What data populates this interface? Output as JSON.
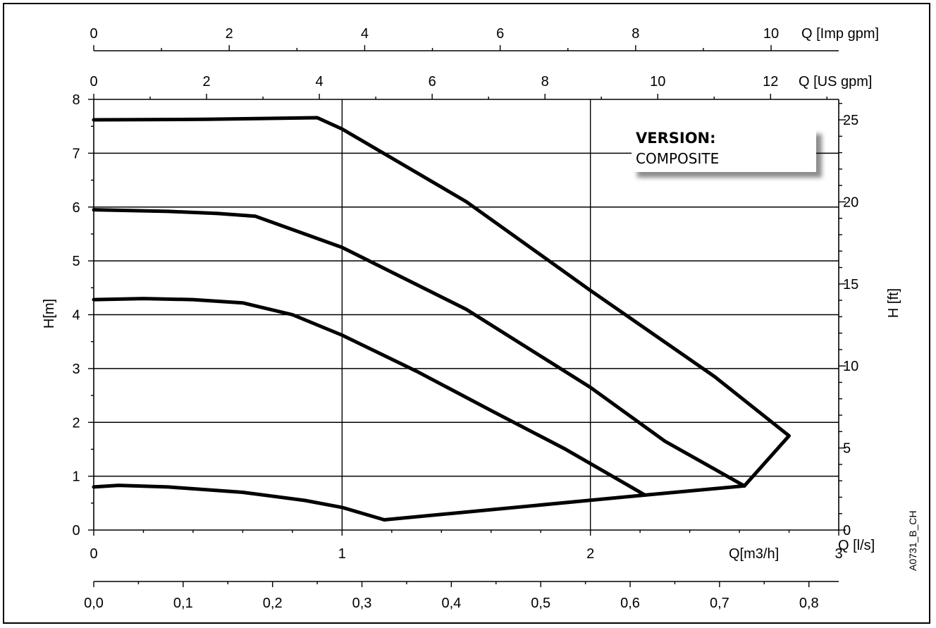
{
  "chart_data": {
    "type": "line",
    "x_axis_bottom": {
      "label": "Q[m3/h]",
      "ticks": [
        "0",
        "1",
        "2",
        "3"
      ],
      "range": [
        0,
        3
      ]
    },
    "x_axis_ls": {
      "label": "Q [l/s]",
      "ticks": [
        "0,0",
        "0,1",
        "0,2",
        "0,3",
        "0,4",
        "0,5",
        "0,6",
        "0,7",
        "0,8"
      ]
    },
    "x_axis_us": {
      "label": "Q [US gpm]",
      "ticks": [
        "0",
        "2",
        "4",
        "6",
        "8",
        "10",
        "12"
      ]
    },
    "x_axis_imp": {
      "label": "Q [Imp gpm]",
      "ticks": [
        "0",
        "2",
        "4",
        "6",
        "8",
        "10"
      ]
    },
    "y_axis_left": {
      "label": "H[m]",
      "ticks": [
        "0",
        "1",
        "2",
        "3",
        "4",
        "5",
        "6",
        "7",
        "8"
      ],
      "range": [
        0,
        8
      ]
    },
    "y_axis_right": {
      "label": "H [ft]",
      "ticks": [
        "0",
        "5",
        "10",
        "15",
        "20",
        "25"
      ]
    },
    "grid": true,
    "series": [
      {
        "points": [
          [
            0,
            7.62
          ],
          [
            0.45,
            7.63
          ],
          [
            0.9,
            7.66
          ],
          [
            1.0,
            7.45
          ],
          [
            1.5,
            6.1
          ],
          [
            2.0,
            4.45
          ],
          [
            2.5,
            2.85
          ],
          [
            2.8,
            1.75
          ],
          [
            2.62,
            0.82
          ]
        ]
      },
      {
        "points": [
          [
            0,
            5.95
          ],
          [
            0.3,
            5.92
          ],
          [
            0.5,
            5.88
          ],
          [
            0.65,
            5.83
          ],
          [
            1.0,
            5.25
          ],
          [
            1.5,
            4.1
          ],
          [
            2.0,
            2.65
          ],
          [
            2.3,
            1.65
          ],
          [
            2.62,
            0.82
          ]
        ]
      },
      {
        "points": [
          [
            0,
            4.28
          ],
          [
            0.2,
            4.3
          ],
          [
            0.4,
            4.28
          ],
          [
            0.6,
            4.22
          ],
          [
            0.8,
            4.0
          ],
          [
            1.0,
            3.62
          ],
          [
            1.3,
            2.95
          ],
          [
            1.6,
            2.22
          ],
          [
            1.9,
            1.5
          ],
          [
            2.22,
            0.65
          ]
        ]
      },
      {
        "points": [
          [
            0,
            0.8
          ],
          [
            0.1,
            0.83
          ],
          [
            0.3,
            0.8
          ],
          [
            0.6,
            0.7
          ],
          [
            0.85,
            0.55
          ],
          [
            1.0,
            0.42
          ],
          [
            1.17,
            0.19
          ],
          [
            2.22,
            0.65
          ],
          [
            2.62,
            0.82
          ]
        ]
      }
    ]
  },
  "version_box": {
    "title": "VERSION:",
    "value": "COMPOSITE"
  },
  "drawing_code": "A0731_B_CH"
}
